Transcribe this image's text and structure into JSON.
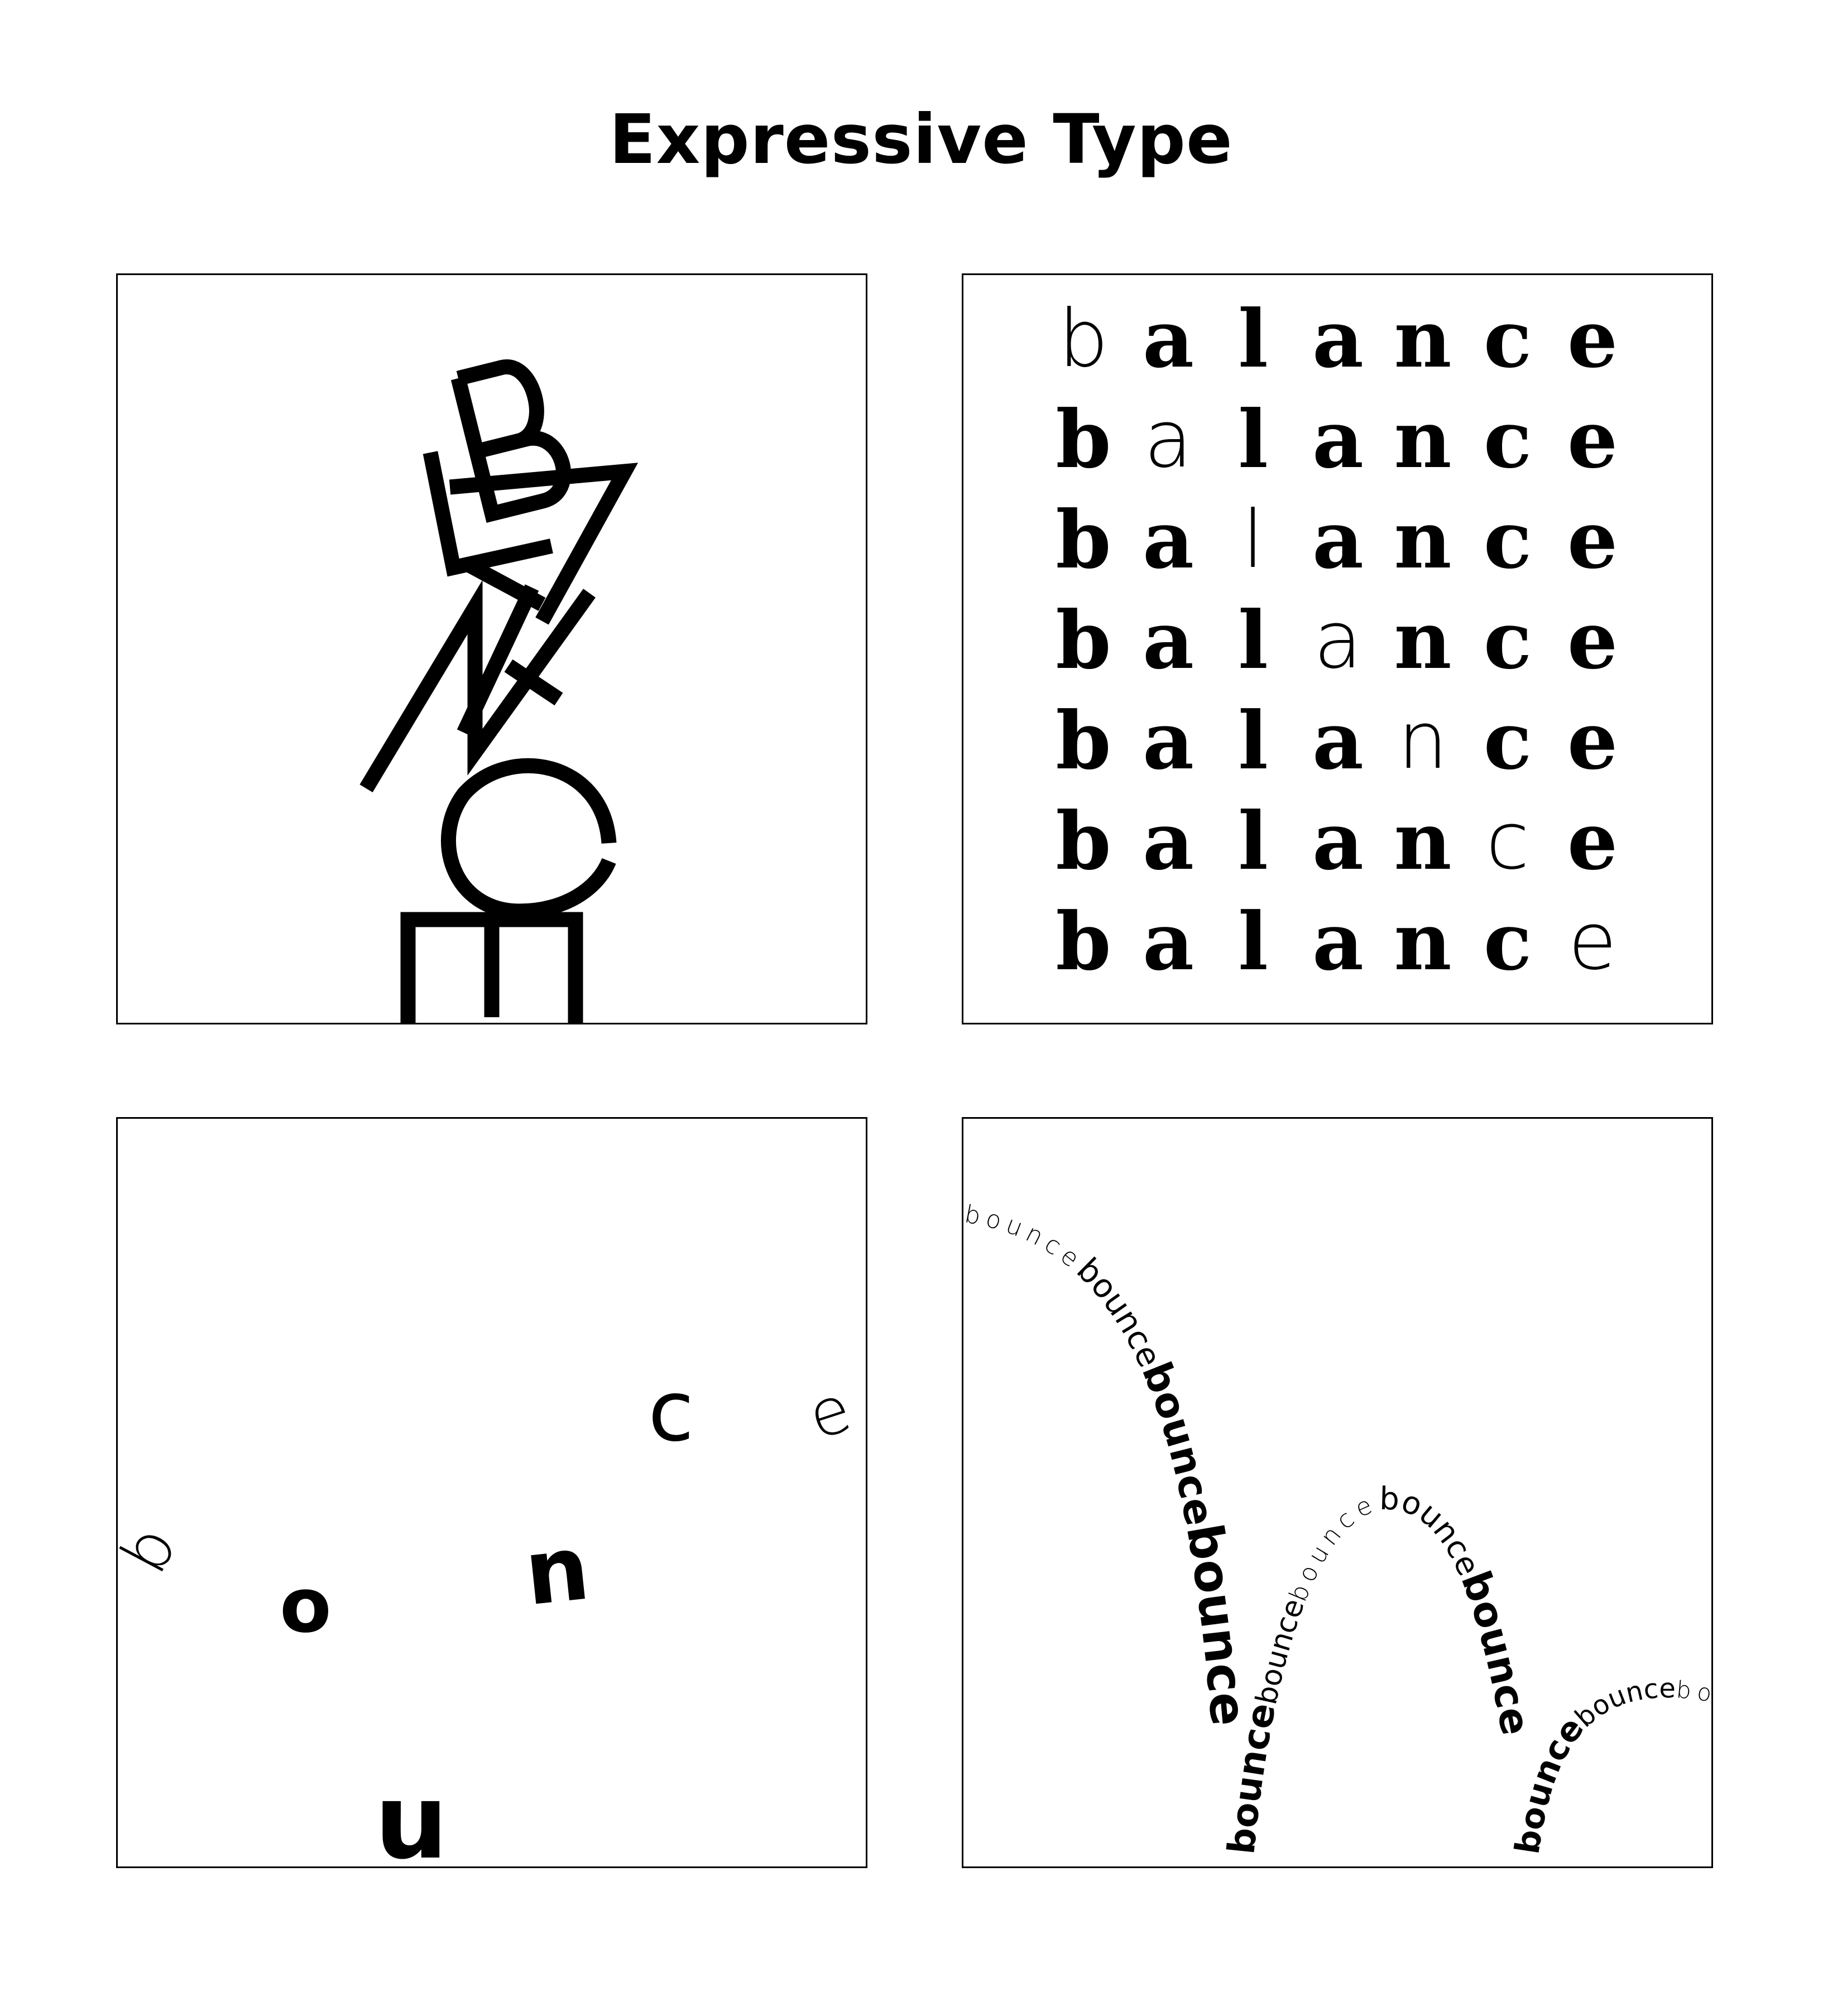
{
  "title": "Expressive Type",
  "panels": {
    "balance_stack": {
      "letters": [
        "B",
        "A",
        "L",
        "A",
        "N",
        "C",
        "E"
      ]
    },
    "balance_grid": {
      "word": "balance",
      "rows": 7
    },
    "bounce_scatter": {
      "letters": [
        "b",
        "o",
        "u",
        "n",
        "c",
        "e"
      ]
    },
    "bounce_path": {
      "word": "bounce",
      "repeats": 12
    }
  }
}
